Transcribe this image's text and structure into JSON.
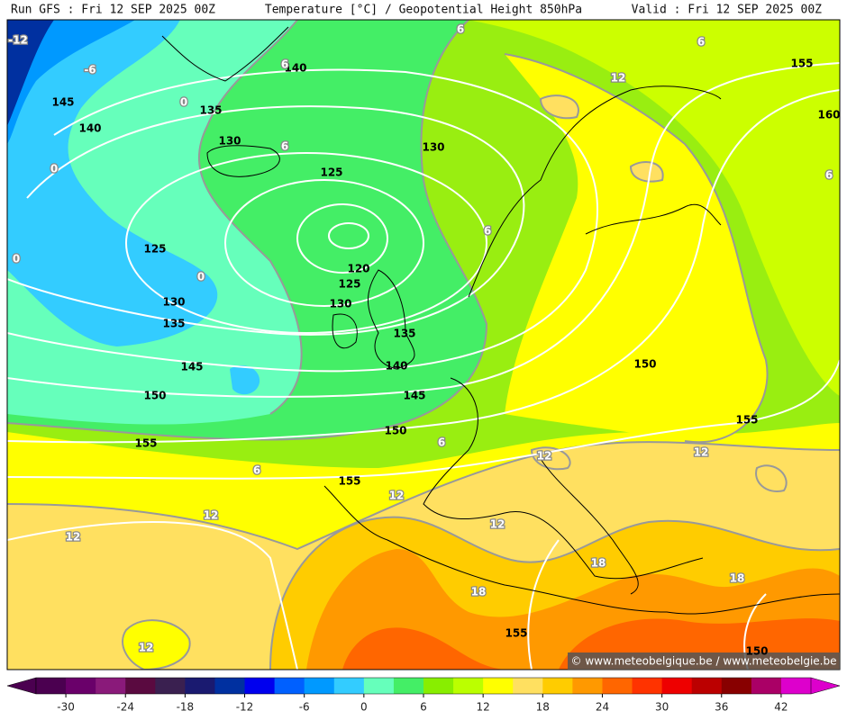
{
  "header": {
    "run": "Run GFS : Fri 12 SEP 2025 00Z",
    "title": "Temperature [°C] / Geopotential Height 850hPa",
    "valid": "Valid : Fri 12 SEP 2025 00Z"
  },
  "credit": "© www.meteobelgique.be / www.meteobelgie.be",
  "isobar_labels": [
    "140",
    "145",
    "140",
    "135",
    "130",
    "130",
    "125",
    "125",
    "120",
    "125",
    "130",
    "130",
    "135",
    "135",
    "145",
    "140",
    "150",
    "145",
    "150",
    "155",
    "155",
    "155",
    "160",
    "150",
    "155",
    "155",
    "150"
  ],
  "temperature_labels": [
    "-12",
    "-6",
    "0",
    "0",
    "6",
    "6",
    "6",
    "12",
    "6",
    "6",
    "6",
    "0",
    "0",
    "6",
    "6",
    "12",
    "12",
    "12",
    "12",
    "12",
    "12",
    "18",
    "18",
    "18",
    "12"
  ],
  "colorbar": {
    "range": [
      -33,
      45
    ],
    "colors": [
      "#4b0050",
      "#6a006a",
      "#8a1a7a",
      "#5a0a40",
      "#3a2050",
      "#1a1a70",
      "#0030a0",
      "#0000ee",
      "#0060ff",
      "#0099ff",
      "#33ccff",
      "#66ffbb",
      "#44ee66",
      "#88ee00",
      "#bbff00",
      "#ffff00",
      "#ffe060",
      "#ffcc00",
      "#ff9900",
      "#ff6600",
      "#ff3300",
      "#ee0000",
      "#bb0000",
      "#880000",
      "#aa0066",
      "#dd00cc"
    ],
    "ticks": [
      -30,
      -24,
      -18,
      -12,
      -6,
      0,
      6,
      12,
      18,
      24,
      30,
      36,
      42
    ]
  }
}
